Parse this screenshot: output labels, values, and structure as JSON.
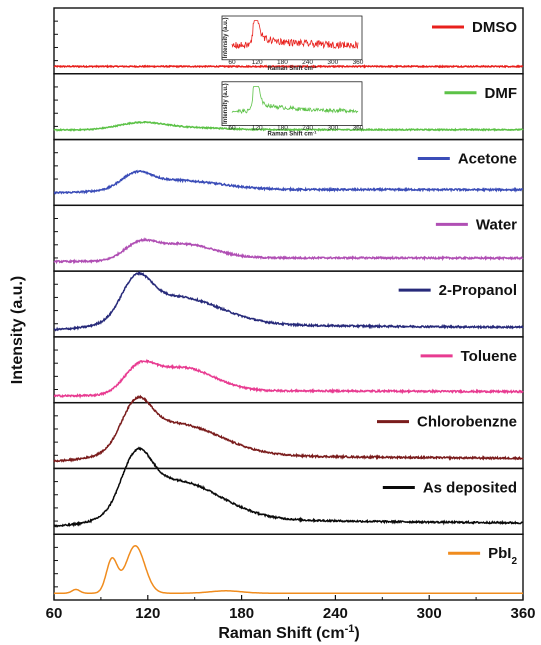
{
  "chart_data": {
    "type": "line",
    "xlabel": "Raman Shift (cm",
    "xlabel_sup": "-1",
    "xlabel_end": ")",
    "ylabel": "Intensity (a.u.)",
    "xlim": [
      60,
      360
    ],
    "xticks": [
      "60",
      "120",
      "180",
      "240",
      "300",
      "360"
    ],
    "grid": false,
    "series": [
      {
        "name": "DMSO",
        "color": "#e8201c",
        "profile": "flat",
        "noise": 0.02,
        "base": 0.06,
        "amp": 0.0,
        "tail": 0.0
      },
      {
        "name": "DMF",
        "color": "#5cc247",
        "profile": "bump",
        "noise": 0.02,
        "base": 0.1,
        "amp": 0.12,
        "tail": 0.02
      },
      {
        "name": "Acetone",
        "color": "#3b4db8",
        "profile": "broad",
        "noise": 0.03,
        "base": 0.15,
        "amp": 0.22,
        "tail": 0.17
      },
      {
        "name": "Water",
        "color": "#b04fb4",
        "profile": "broad2",
        "noise": 0.03,
        "base": 0.1,
        "amp": 0.28,
        "tail": 0.17
      },
      {
        "name": "2-Propanol",
        "color": "#272a7a",
        "profile": "broad",
        "noise": 0.03,
        "base": 0.05,
        "amp": 0.58,
        "tail": 0.1
      },
      {
        "name": "Toluene",
        "color": "#e83b91",
        "profile": "broad2",
        "noise": 0.03,
        "base": 0.05,
        "amp": 0.45,
        "tail": 0.2
      },
      {
        "name": "Chlorobenzne",
        "color": "#7a1c1c",
        "profile": "broad",
        "noise": 0.03,
        "base": 0.05,
        "amp": 0.66,
        "tail": 0.12
      },
      {
        "name": "As deposited",
        "color": "#0a0a0a",
        "profile": "broad",
        "noise": 0.03,
        "base": 0.06,
        "amp": 0.8,
        "tail": 0.14
      },
      {
        "name": "PbI",
        "name_sub": "2",
        "color": "#f08c1e",
        "profile": "pbi2",
        "noise": 0.0,
        "base": 0.05,
        "amp": 0.85,
        "tail": 0.0
      }
    ],
    "insets": [
      {
        "panel": "DMSO",
        "color": "#e8201c",
        "ylabel": "Intensity (a.u.)",
        "xlabel": "Raman Shift cm",
        "xlabel_sup": "-1",
        "xticks": [
          "60",
          "120",
          "180",
          "240",
          "300",
          "360"
        ]
      },
      {
        "panel": "DMF",
        "color": "#5cc247",
        "ylabel": "Intensity (a.u.)",
        "xlabel": "Raman Shift cm",
        "xlabel_sup": "-1",
        "xticks": [
          "60",
          "120",
          "180",
          "240",
          "300",
          "360"
        ]
      }
    ]
  }
}
